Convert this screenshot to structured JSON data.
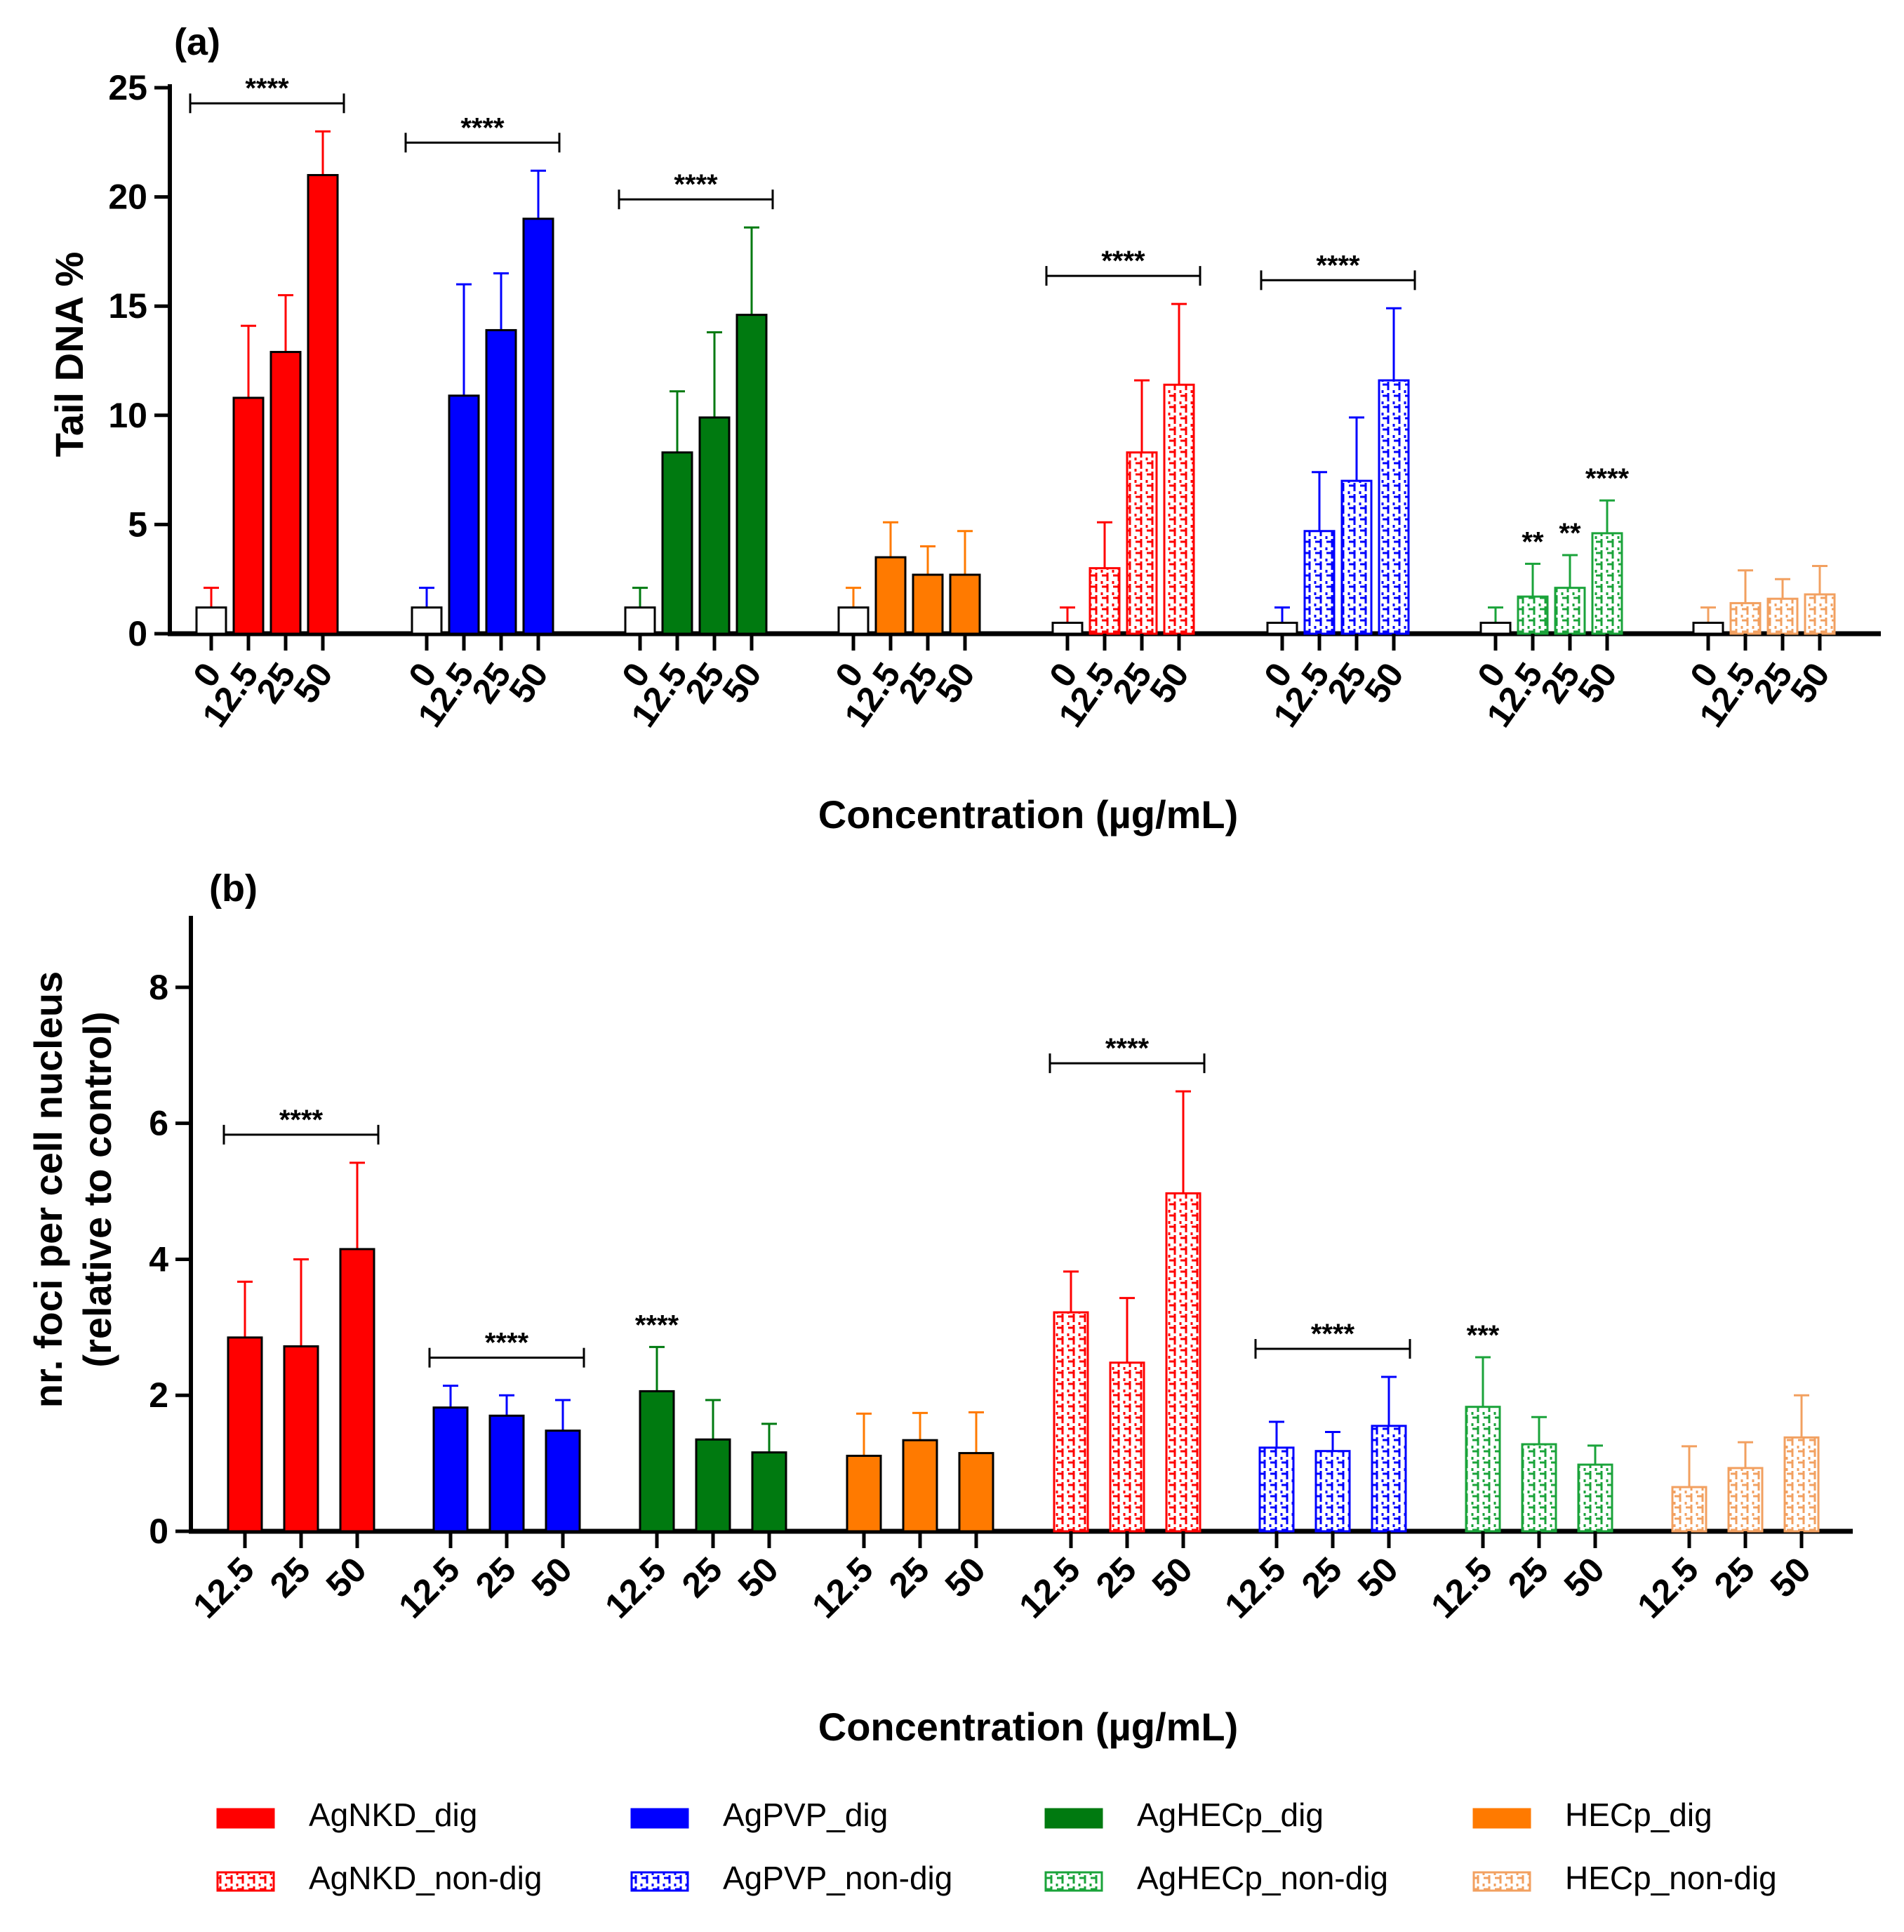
{
  "colors": {
    "AgNKD": "#ff0000",
    "AgPVP": "#0000ff",
    "AgHECp": "#007a10",
    "HECp": "#ff7a00",
    "AgHECp_non": "#1aa33a",
    "HECp_non": "#f2a060",
    "axis": "#000000"
  },
  "chart_data": [
    {
      "type": "bar",
      "panel": "(a)",
      "ylabel": "Tail DNA %",
      "xlabel": "Concentration (µg/mL)",
      "ylim": [
        0,
        25
      ],
      "yticks": [
        "0",
        "5",
        "10",
        "15",
        "20",
        "25"
      ],
      "concentrations": [
        "0",
        "12.5",
        "25",
        "50"
      ],
      "groups": [
        {
          "name": "AgNKD_dig",
          "color": "AgNKD",
          "pattern": "solid",
          "values": [
            1.2,
            10.8,
            12.9,
            21.0
          ],
          "errors": [
            0.9,
            3.3,
            2.6,
            2.0
          ],
          "sig": {
            "text": "****",
            "bracket": true
          }
        },
        {
          "name": "AgPVP_dig",
          "color": "AgPVP",
          "pattern": "solid",
          "values": [
            1.2,
            10.9,
            13.9,
            19.0
          ],
          "errors": [
            0.9,
            5.1,
            2.6,
            2.2
          ],
          "sig": {
            "text": "****",
            "bracket": true
          }
        },
        {
          "name": "AgHECp_dig",
          "color": "AgHECp",
          "pattern": "solid",
          "values": [
            1.2,
            8.3,
            9.9,
            14.6
          ],
          "errors": [
            0.9,
            2.8,
            3.9,
            4.0
          ],
          "sig": {
            "text": "****",
            "bracket": true
          }
        },
        {
          "name": "HECp_dig",
          "color": "HECp",
          "pattern": "solid",
          "values": [
            1.2,
            3.5,
            2.7,
            2.7
          ],
          "errors": [
            0.9,
            1.6,
            1.3,
            2.0
          ],
          "sig": null
        },
        {
          "name": "AgNKD_non-dig",
          "color": "AgNKD",
          "pattern": "hatch",
          "values": [
            0.5,
            3.0,
            8.3,
            11.4
          ],
          "errors": [
            0.7,
            2.1,
            3.3,
            3.7
          ],
          "sig": {
            "text": "****",
            "bracket": true
          }
        },
        {
          "name": "AgPVP_non-dig",
          "color": "AgPVP",
          "pattern": "hatch",
          "values": [
            0.5,
            4.7,
            7.0,
            11.6
          ],
          "errors": [
            0.7,
            2.7,
            2.9,
            3.3
          ],
          "sig": {
            "text": "****",
            "bracket": true
          }
        },
        {
          "name": "AgHECp_non-dig",
          "color": "AgHECp_non",
          "pattern": "hatch",
          "values": [
            0.5,
            1.7,
            2.1,
            4.6
          ],
          "errors": [
            0.7,
            1.5,
            1.5,
            1.5
          ],
          "sig": {
            "perbar": [
              "",
              "**",
              "**",
              "****"
            ]
          }
        },
        {
          "name": "HECp_non-dig",
          "color": "HECp_non",
          "pattern": "hatch",
          "values": [
            0.5,
            1.4,
            1.6,
            1.8
          ],
          "errors": [
            0.7,
            1.5,
            0.9,
            1.3
          ],
          "sig": null
        }
      ]
    },
    {
      "type": "bar",
      "panel": "(b)",
      "ylabel": [
        "nr. foci per cell nucleus",
        "(relative to control)"
      ],
      "xlabel": "Concentration (µg/mL)",
      "ylim": [
        0,
        9
      ],
      "yticks": [
        "0",
        "2",
        "4",
        "6",
        "8"
      ],
      "concentrations": [
        "12.5",
        "25",
        "50"
      ],
      "groups": [
        {
          "name": "AgNKD_dig",
          "color": "AgNKD",
          "pattern": "solid",
          "values": [
            2.85,
            2.72,
            4.15
          ],
          "errors": [
            0.82,
            1.28,
            1.27
          ],
          "sig": {
            "text": "****",
            "bracket": true
          }
        },
        {
          "name": "AgPVP_dig",
          "color": "AgPVP",
          "pattern": "solid",
          "values": [
            1.82,
            1.7,
            1.48
          ],
          "errors": [
            0.32,
            0.3,
            0.45
          ],
          "sig": {
            "text": "****",
            "bracket": true
          }
        },
        {
          "name": "AgHECp_dig",
          "color": "AgHECp",
          "pattern": "solid",
          "values": [
            2.06,
            1.35,
            1.16
          ],
          "errors": [
            0.65,
            0.58,
            0.42
          ],
          "sig": {
            "perbar": [
              "****",
              "",
              ""
            ]
          }
        },
        {
          "name": "HECp_dig",
          "color": "HECp",
          "pattern": "solid",
          "values": [
            1.11,
            1.34,
            1.15
          ],
          "errors": [
            0.62,
            0.4,
            0.6
          ],
          "sig": null
        },
        {
          "name": "AgNKD_non-dig",
          "color": "AgNKD",
          "pattern": "hatch",
          "values": [
            3.22,
            2.48,
            4.97
          ],
          "errors": [
            0.6,
            0.95,
            1.5
          ],
          "sig": {
            "text": "****",
            "bracket": true
          }
        },
        {
          "name": "AgPVP_non-dig",
          "color": "AgPVP",
          "pattern": "hatch",
          "values": [
            1.23,
            1.18,
            1.55
          ],
          "errors": [
            0.38,
            0.28,
            0.72
          ],
          "sig": {
            "text": "****",
            "bracket": true
          }
        },
        {
          "name": "AgHECp_non-dig",
          "color": "AgHECp_non",
          "pattern": "hatch",
          "values": [
            1.83,
            1.28,
            0.98
          ],
          "errors": [
            0.73,
            0.4,
            0.28
          ],
          "sig": {
            "perbar": [
              "***",
              "",
              ""
            ]
          }
        },
        {
          "name": "HECp_non-dig",
          "color": "HECp_non",
          "pattern": "hatch",
          "values": [
            0.65,
            0.93,
            1.38
          ],
          "errors": [
            0.6,
            0.38,
            0.62
          ],
          "sig": null
        }
      ]
    }
  ],
  "legend": {
    "items": [
      {
        "label": "AgNKD_dig",
        "color": "AgNKD",
        "pattern": "solid"
      },
      {
        "label": "AgPVP_dig",
        "color": "AgPVP",
        "pattern": "solid"
      },
      {
        "label": "AgHECp_dig",
        "color": "AgHECp",
        "pattern": "solid"
      },
      {
        "label": "HECp_dig",
        "color": "HECp",
        "pattern": "solid"
      },
      {
        "label": "AgNKD_non-dig",
        "color": "AgNKD",
        "pattern": "hatch"
      },
      {
        "label": "AgPVP_non-dig",
        "color": "AgPVP",
        "pattern": "hatch"
      },
      {
        "label": "AgHECp_non-dig",
        "color": "AgHECp_non",
        "pattern": "hatch"
      },
      {
        "label": "HECp_non-dig",
        "color": "HECp_non",
        "pattern": "hatch"
      }
    ]
  }
}
